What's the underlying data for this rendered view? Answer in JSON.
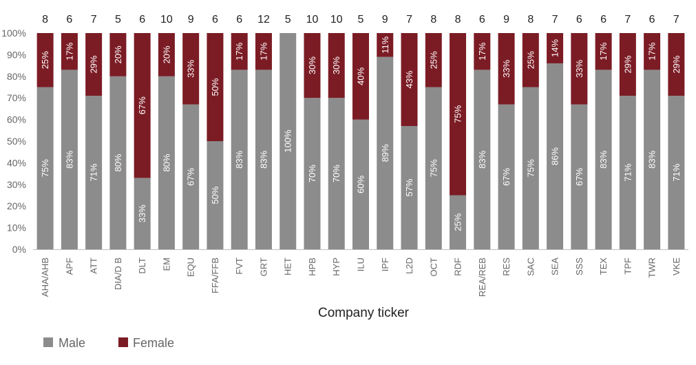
{
  "chart_data": {
    "type": "bar",
    "stacked": true,
    "xlabel": "Company ticker",
    "ylabel": "",
    "ylim": [
      0,
      100
    ],
    "yticks": [
      "0%",
      "10%",
      "20%",
      "30%",
      "40%",
      "50%",
      "60%",
      "70%",
      "80%",
      "90%",
      "100%"
    ],
    "categories": [
      "AHA/AHB",
      "APF",
      "ATT",
      "DIA/D B",
      "DLT",
      "EM",
      "EQU",
      "FFA/FFB",
      "FVT",
      "GRT",
      "HET",
      "HPB",
      "HYP",
      "ILU",
      "IPF",
      "L2D",
      "OCT",
      "RDF",
      "REA/REB",
      "RES",
      "SAC",
      "SEA",
      "SSS",
      "TEX",
      "TPF",
      "TWR",
      "VKE"
    ],
    "counts": [
      "8",
      "6",
      "7",
      "5",
      "6",
      "10",
      "9",
      "6",
      "6",
      "12",
      "5",
      "10",
      "10",
      "5",
      "9",
      "7",
      "8",
      "8",
      "6",
      "9",
      "8",
      "7",
      "6",
      "6",
      "7",
      "6",
      "7"
    ],
    "series": [
      {
        "name": "Male",
        "color": "#8c8c8c",
        "values": [
          75,
          83,
          71,
          80,
          33,
          80,
          67,
          50,
          83,
          83,
          100,
          70,
          70,
          60,
          89,
          57,
          75,
          25,
          83,
          67,
          75,
          86,
          67,
          83,
          71,
          83,
          71
        ],
        "labels": [
          "75%",
          "83%",
          "71%",
          "80%",
          "33%",
          "80%",
          "67%",
          "50%",
          "83%",
          "83%",
          "100%",
          "70%",
          "70%",
          "60%",
          "89%",
          "57%",
          "75%",
          "25%",
          "83%",
          "67%",
          "75%",
          "86%",
          "67%",
          "83%",
          "71%",
          "83%",
          "71%"
        ]
      },
      {
        "name": "Female",
        "color": "#7b1c25",
        "values": [
          25,
          17,
          29,
          20,
          67,
          20,
          33,
          50,
          17,
          17,
          0,
          30,
          30,
          40,
          11,
          43,
          25,
          75,
          17,
          33,
          25,
          14,
          33,
          17,
          29,
          17,
          29
        ],
        "labels": [
          "25%",
          "17%",
          "29%",
          "20%",
          "67%",
          "20%",
          "33%",
          "50%",
          "17%",
          "17%",
          "",
          "30%",
          "30%",
          "40%",
          "11%",
          "43%",
          "25%",
          "75%",
          "17%",
          "33%",
          "25%",
          "14%",
          "33%",
          "17%",
          "29%",
          "17%",
          "29%"
        ]
      }
    ],
    "legend_position": "bottom-left"
  }
}
